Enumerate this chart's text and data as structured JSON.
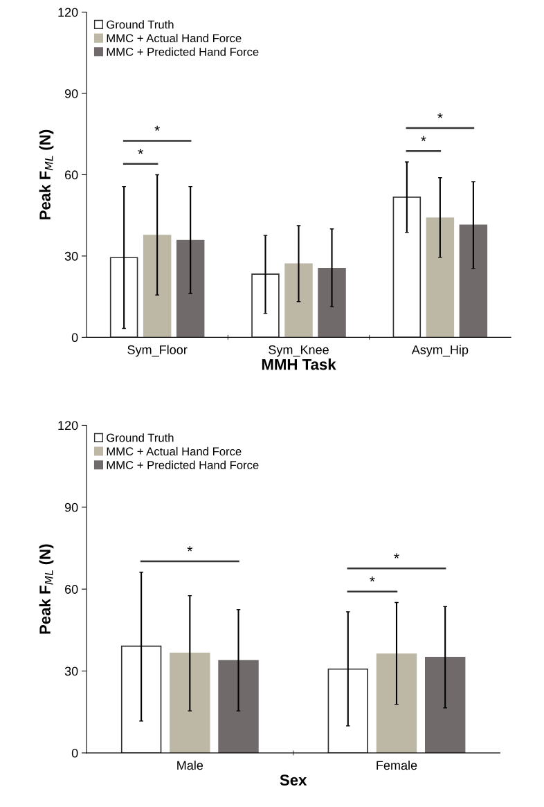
{
  "chart_data": [
    {
      "type": "bar",
      "categories": [
        "Sym_Floor",
        "Sym_Knee",
        "Asym_Hip"
      ],
      "xlabel": "MMH Task",
      "ylabel": "Peak F$_{ML}$ (N)",
      "ylim": [
        0,
        120
      ],
      "yticks": [
        0,
        30,
        60,
        90,
        120
      ],
      "legend": "top left",
      "grid": false,
      "series": [
        {
          "name": "Ground Truth",
          "color": "#ffffff",
          "values": [
            29.4,
            23.3,
            51.7
          ],
          "errors": [
            [
              3.3,
              55.6
            ],
            [
              8.8,
              37.6
            ],
            [
              38.7,
              64.7
            ]
          ]
        },
        {
          "name": "MMC + Actual Hand Force",
          "color": "#bdb8a6",
          "values": [
            37.6,
            27.1,
            44.0
          ],
          "errors": [
            [
              15.6,
              60.0
            ],
            [
              13.2,
              41.2
            ],
            [
              29.5,
              58.9
            ]
          ]
        },
        {
          "name": "MMC + Predicted Hand Force",
          "color": "#716a6a",
          "values": [
            35.7,
            25.4,
            41.4
          ],
          "errors": [
            [
              16.2,
              55.6
            ],
            [
              11.3,
              40.0
            ],
            [
              25.4,
              57.4
            ]
          ]
        }
      ],
      "annotations": [
        "*",
        "*",
        "*",
        "*"
      ]
    },
    {
      "type": "bar",
      "categories": [
        "Male",
        "Female"
      ],
      "xlabel": "Sex",
      "ylabel": "Peak F$_{ML}$ (N)",
      "ylim": [
        0,
        120
      ],
      "yticks": [
        0,
        30,
        60,
        90,
        120
      ],
      "legend": "top left",
      "grid": false,
      "series": [
        {
          "name": "Ground Truth",
          "color": "#ffffff",
          "values": [
            39.1,
            30.7
          ],
          "errors": [
            [
              11.7,
              66.2
            ],
            [
              9.9,
              51.7
            ]
          ]
        },
        {
          "name": "MMC + Actual Hand Force",
          "color": "#bdb8a6",
          "values": [
            36.5,
            36.2
          ],
          "errors": [
            [
              15.4,
              57.6
            ],
            [
              17.8,
              55.1
            ]
          ]
        },
        {
          "name": "MMC + Predicted Hand Force",
          "color": "#716a6a",
          "values": [
            33.8,
            35.0
          ],
          "errors": [
            [
              15.4,
              52.5
            ],
            [
              16.5,
              53.6
            ]
          ]
        }
      ],
      "annotations": [
        "*",
        "*",
        "*"
      ]
    }
  ]
}
